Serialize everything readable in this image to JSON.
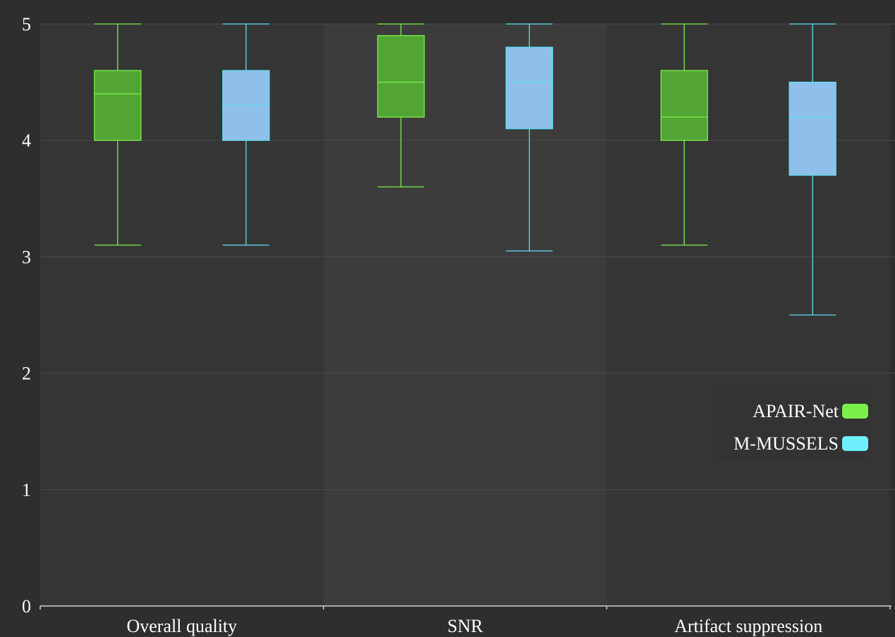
{
  "chart_data": {
    "type": "box",
    "categories": [
      "Overall quality",
      "SNR",
      "Artifact suppression"
    ],
    "ylim": [
      0,
      5
    ],
    "yticks": [
      "0",
      "1",
      "2",
      "3",
      "4",
      "5"
    ],
    "grid": true,
    "legend_position": "right",
    "colors": {
      "background": "#2e2e2e",
      "plot_band_a": "#353535",
      "plot_band_b": "#3c3c3c",
      "grid": "#4a4a4a",
      "axis": "#d0d0d0"
    },
    "series": [
      {
        "name": "APAIR-Net",
        "fill": "#52a535",
        "stroke": "#7cf04a",
        "legend_color": "#7cf04a",
        "boxes": [
          {
            "min": 3.1,
            "q1": 4.0,
            "median": 4.4,
            "q3": 4.6,
            "max": 5.0
          },
          {
            "min": 3.6,
            "q1": 4.2,
            "median": 4.5,
            "q3": 4.9,
            "max": 5.0
          },
          {
            "min": 3.1,
            "q1": 4.0,
            "median": 4.2,
            "q3": 4.6,
            "max": 5.0
          }
        ]
      },
      {
        "name": "M-MUSSELS",
        "fill": "#8fbfeb",
        "stroke": "#5ee0f0",
        "legend_color": "#6ff0ff",
        "boxes": [
          {
            "min": 3.1,
            "q1": 4.0,
            "median": 4.3,
            "q3": 4.6,
            "max": 5.0
          },
          {
            "min": 3.05,
            "q1": 4.1,
            "median": 4.5,
            "q3": 4.8,
            "max": 5.0
          },
          {
            "min": 2.5,
            "q1": 3.7,
            "median": 4.2,
            "q3": 4.5,
            "max": 5.0
          }
        ]
      }
    ]
  }
}
